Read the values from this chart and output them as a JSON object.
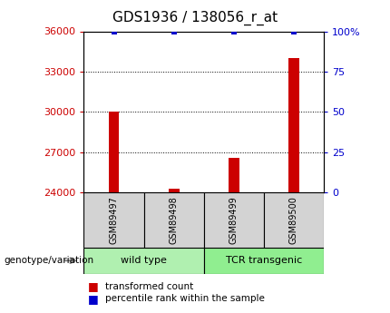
{
  "title": "GDS1936 / 138056_r_at",
  "samples": [
    "GSM89497",
    "GSM89498",
    "GSM89499",
    "GSM89500"
  ],
  "red_values": [
    30000,
    24300,
    26600,
    34000
  ],
  "blue_values": [
    100,
    100,
    100,
    100
  ],
  "ylim_left": [
    24000,
    36000
  ],
  "ylim_right": [
    0,
    100
  ],
  "yticks_left": [
    24000,
    27000,
    30000,
    33000,
    36000
  ],
  "yticks_right": [
    0,
    25,
    50,
    75,
    100
  ],
  "yticklabels_right": [
    "0",
    "25",
    "50",
    "75",
    "100%"
  ],
  "red_color": "#cc0000",
  "blue_color": "#0000cc",
  "title_fontsize": 11,
  "axis_label_color_left": "#cc0000",
  "axis_label_color_right": "#0000cc",
  "xlabel_annotation": "genotype/variation",
  "legend_items": [
    "transformed count",
    "percentile rank within the sample"
  ],
  "sample_box_color": "#d3d3d3",
  "group_box_color_1": "#b0f0b0",
  "group_box_color_2": "#90ee90",
  "group_info": [
    [
      0,
      1,
      "wild type"
    ],
    [
      2,
      3,
      "TCR transgenic"
    ]
  ],
  "bar_width": 0.18
}
